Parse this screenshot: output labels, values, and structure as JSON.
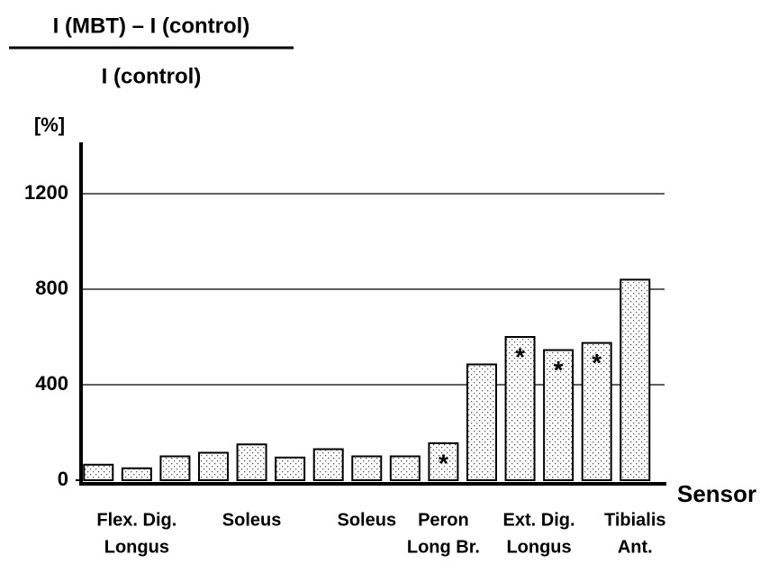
{
  "chart_data": {
    "type": "bar",
    "title": {
      "numerator": "I (MBT) – I (control)",
      "denominator": "I (control)"
    },
    "y_label": "[%]",
    "x_label": "Sensor",
    "categories": [
      null,
      [
        "Flex. Dig.",
        "Longus"
      ],
      null,
      null,
      [
        "Soleus"
      ],
      null,
      null,
      [
        "Soleus"
      ],
      null,
      [
        "Peron",
        "Long Br."
      ],
      null,
      [
        "Ext. Dig.",
        "Longus"
      ],
      null,
      null,
      [
        "Tibialis",
        "Ant."
      ]
    ],
    "values": [
      65,
      50,
      100,
      115,
      150,
      95,
      130,
      100,
      100,
      155,
      485,
      600,
      545,
      575,
      840
    ],
    "annotations": [
      {
        "label": "*",
        "category_index": 9
      },
      {
        "label": "*",
        "category_index": 11
      },
      {
        "label": "*",
        "category_index": 12
      },
      {
        "label": "*",
        "category_index": 13
      }
    ],
    "color": "#000000",
    "ylim": [
      0,
      1400
    ],
    "yticks": [
      0,
      400,
      800,
      1200
    ],
    "grid": true
  }
}
